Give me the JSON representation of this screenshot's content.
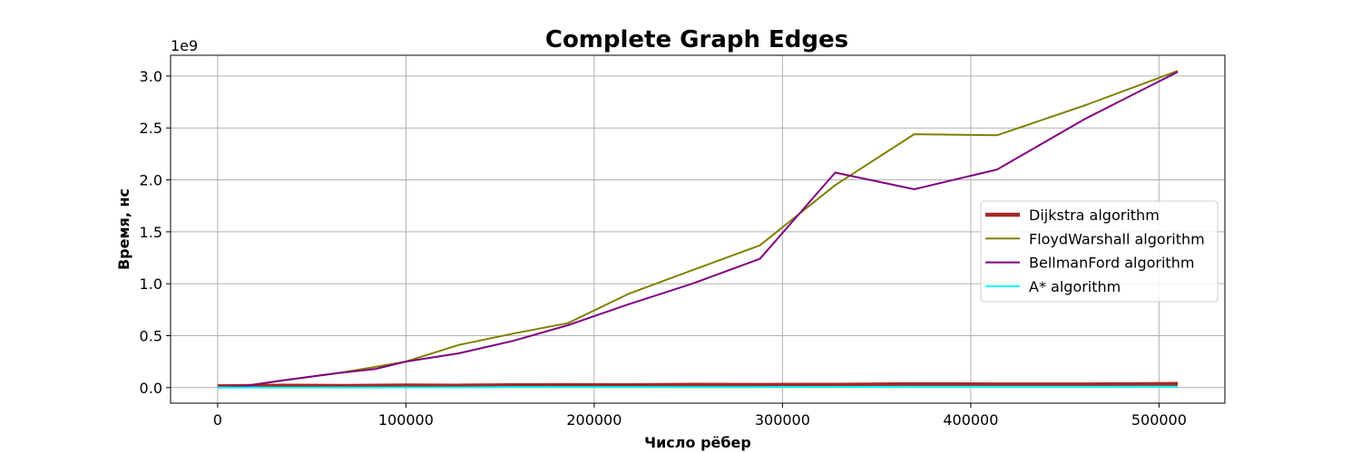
{
  "chart_data": {
    "type": "line",
    "title": "Complete Graph Edges",
    "xlabel": "Число рёбер",
    "ylabel": "Время, нс",
    "y_scale_label": "1e9",
    "xlim": [
      -25000,
      535000
    ],
    "ylim": [
      -0.15,
      3.2
    ],
    "x_ticks": [
      0,
      100000,
      200000,
      300000,
      400000,
      500000
    ],
    "x_tick_labels": [
      "0",
      "100000",
      "200000",
      "300000",
      "400000",
      "500000"
    ],
    "y_ticks": [
      0.0,
      0.5,
      1.0,
      1.5,
      2.0,
      2.5,
      3.0
    ],
    "y_tick_labels": [
      "0.0",
      "0.5",
      "1.0",
      "1.5",
      "2.0",
      "2.5",
      "3.0"
    ],
    "grid": true,
    "legend_position": "center-right",
    "series": [
      {
        "name": "Dijkstra algorithm",
        "color": "#a52a2a",
        "width": 4.5,
        "x": [
          0,
          12000,
          35000,
          64000,
          100000,
          128000,
          157000,
          186000,
          218000,
          252000,
          288000,
          328000,
          370000,
          414000,
          461000,
          510000
        ],
        "y": [
          0.012,
          0.015,
          0.018,
          0.016,
          0.02,
          0.018,
          0.022,
          0.024,
          0.022,
          0.026,
          0.025,
          0.027,
          0.032,
          0.03,
          0.03,
          0.035
        ]
      },
      {
        "name": "FloydWarshall algorithm",
        "color": "#808000",
        "width": 2,
        "x": [
          0,
          12000,
          35000,
          64000,
          84000,
          100000,
          128000,
          157000,
          186000,
          218000,
          252000,
          288000,
          328000,
          370000,
          414000,
          461000,
          510000
        ],
        "y": [
          0.0,
          0.01,
          0.07,
          0.14,
          0.2,
          0.25,
          0.41,
          0.52,
          0.62,
          0.9,
          1.13,
          1.37,
          1.95,
          2.44,
          2.43,
          2.72,
          3.05
        ]
      },
      {
        "name": "BellmanFord algorithm",
        "color": "#800080",
        "width": 2,
        "x": [
          0,
          12000,
          35000,
          64000,
          84000,
          100000,
          128000,
          157000,
          186000,
          218000,
          252000,
          288000,
          328000,
          370000,
          414000,
          461000,
          510000
        ],
        "y": [
          0.0,
          0.01,
          0.07,
          0.14,
          0.18,
          0.25,
          0.33,
          0.45,
          0.6,
          0.8,
          1.0,
          1.24,
          2.07,
          1.91,
          2.1,
          2.59,
          3.04
        ]
      },
      {
        "name": "A* algorithm",
        "color": "#00ffff",
        "width": 2,
        "x": [
          0,
          12000,
          35000,
          64000,
          100000,
          128000,
          157000,
          186000,
          218000,
          252000,
          288000,
          328000,
          370000,
          414000,
          461000,
          510000
        ],
        "y": [
          0.0,
          0.0,
          0.0,
          0.0,
          0.002,
          0.002,
          0.004,
          0.004,
          0.004,
          0.005,
          0.005,
          0.006,
          0.008,
          0.008,
          0.008,
          0.01
        ]
      }
    ]
  }
}
